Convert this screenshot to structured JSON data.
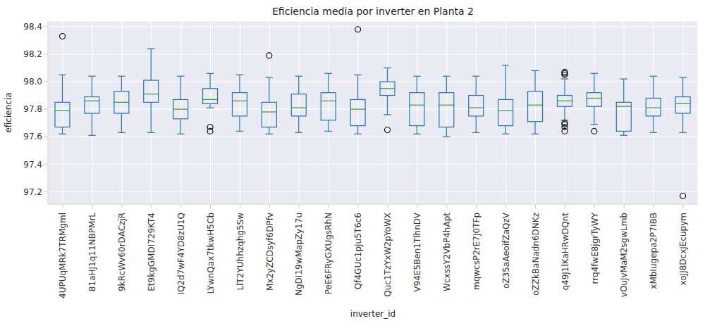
{
  "chart_data": {
    "type": "box",
    "title": "Eficiencia media por inverter en Planta 2",
    "x_label": "inverter_id",
    "y_label": "eficiencia",
    "color": "#1f77b4",
    "grid": true,
    "ylim": [
      97.11,
      98.44
    ],
    "yticks": [
      97.2,
      97.4,
      97.6,
      97.8,
      {
        "value": 98,
        "label": "98.0"
      },
      98.2,
      98.4
    ],
    "categories": [
      "4UPUqMRk7TRMgml",
      "81aHJ1q11NBPMrL",
      "9kRcWv60rDACzjR",
      "Et9kgGMDI729KT4",
      "IQ2d7wF4YD8zU1Q",
      "LYwnQax7tkwH5Cb",
      "LlT2YUhhzqhg5Sw",
      "Mx2yZCDsyf6DPfv",
      "NgDI19wMapZy17u",
      "PeE6FRyGXUgsRhN",
      "Qf4GUc1pJu5T6c6",
      "Quc1TzYxW2pYoWX",
      "V94E5Ben1TlhnDV",
      "WcxssY2VbP4hApt",
      "mqwcsP2rE7J0TFp",
      "oZ35aAeoifZaQzV",
      "oZZkBaNadn6DNKz",
      "q49J1lKaHRwDQnt",
      "rrq4fwE8jgrTyWY",
      "vOuJvMaM2sgwLmb",
      "xMbIugepa2P7IBB",
      "xoJJ8DcxJEcupym"
    ],
    "boxes": [
      {
        "whislo": 97.62,
        "q1": 97.67,
        "median": 97.79,
        "q3": 97.85,
        "whishi": 98.05,
        "fliers": [
          98.33
        ]
      },
      {
        "whislo": 97.61,
        "q1": 97.77,
        "median": 97.86,
        "q3": 97.89,
        "whishi": 98.04,
        "fliers": []
      },
      {
        "whislo": 97.63,
        "q1": 97.77,
        "median": 97.85,
        "q3": 97.93,
        "whishi": 98.04,
        "fliers": []
      },
      {
        "whislo": 97.63,
        "q1": 97.85,
        "median": 97.91,
        "q3": 98.01,
        "whishi": 98.24,
        "fliers": []
      },
      {
        "whislo": 97.62,
        "q1": 97.73,
        "median": 97.8,
        "q3": 97.87,
        "whishi": 98.04,
        "fliers": []
      },
      {
        "whislo": 97.81,
        "q1": 97.84,
        "median": 97.87,
        "q3": 97.95,
        "whishi": 98.06,
        "fliers": [
          97.67,
          97.64
        ]
      },
      {
        "whislo": 97.64,
        "q1": 97.75,
        "median": 97.86,
        "q3": 97.92,
        "whishi": 98.05,
        "fliers": []
      },
      {
        "whislo": 97.62,
        "q1": 97.67,
        "median": 97.78,
        "q3": 97.85,
        "whishi": 98.03,
        "fliers": [
          98.19
        ]
      },
      {
        "whislo": 97.63,
        "q1": 97.75,
        "median": 97.81,
        "q3": 97.91,
        "whishi": 98.04,
        "fliers": []
      },
      {
        "whislo": 97.64,
        "q1": 97.72,
        "median": 97.86,
        "q3": 97.92,
        "whishi": 98.06,
        "fliers": []
      },
      {
        "whislo": 97.62,
        "q1": 97.68,
        "median": 97.8,
        "q3": 97.87,
        "whishi": 98.05,
        "fliers": [
          98.38
        ]
      },
      {
        "whislo": 97.76,
        "q1": 97.9,
        "median": 97.95,
        "q3": 98.0,
        "whishi": 98.1,
        "fliers": [
          97.65
        ]
      },
      {
        "whislo": 97.62,
        "q1": 97.68,
        "median": 97.83,
        "q3": 97.92,
        "whishi": 98.04,
        "fliers": []
      },
      {
        "whislo": 97.6,
        "q1": 97.67,
        "median": 97.83,
        "q3": 97.92,
        "whishi": 98.04,
        "fliers": []
      },
      {
        "whislo": 97.63,
        "q1": 97.75,
        "median": 97.81,
        "q3": 97.9,
        "whishi": 98.04,
        "fliers": []
      },
      {
        "whislo": 97.62,
        "q1": 97.68,
        "median": 97.79,
        "q3": 97.87,
        "whishi": 98.12,
        "fliers": []
      },
      {
        "whislo": 97.62,
        "q1": 97.71,
        "median": 97.83,
        "q3": 97.93,
        "whishi": 98.08,
        "fliers": []
      },
      {
        "whislo": 97.72,
        "q1": 97.82,
        "median": 97.86,
        "q3": 97.9,
        "whishi": 98.02,
        "fliers": [
          98.07,
          98.06,
          98.05,
          97.7,
          97.69,
          97.67,
          97.64
        ]
      },
      {
        "whislo": 97.69,
        "q1": 97.82,
        "median": 97.88,
        "q3": 97.92,
        "whishi": 98.06,
        "fliers": [
          97.64
        ]
      },
      {
        "whislo": 97.61,
        "q1": 97.64,
        "median": 97.82,
        "q3": 97.85,
        "whishi": 98.02,
        "fliers": []
      },
      {
        "whislo": 97.63,
        "q1": 97.75,
        "median": 97.81,
        "q3": 97.88,
        "whishi": 98.04,
        "fliers": []
      },
      {
        "whislo": 97.63,
        "q1": 97.77,
        "median": 97.84,
        "q3": 97.89,
        "whishi": 98.03,
        "fliers": [
          97.17
        ]
      }
    ]
  }
}
